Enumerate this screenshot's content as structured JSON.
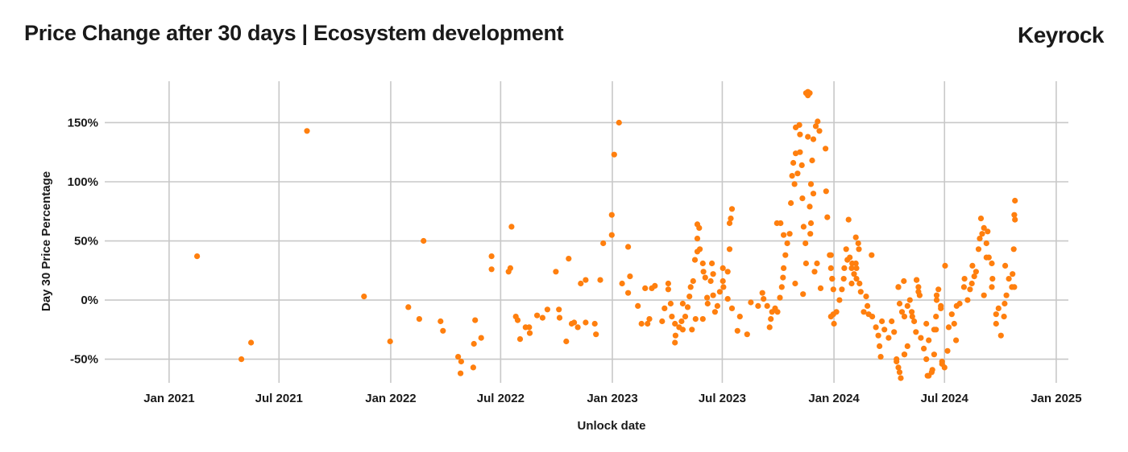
{
  "chart_data": {
    "type": "scatter",
    "title": "Price Change after 30 days | Ecosystem development",
    "brand": "Keyrock",
    "xlabel": "Unlock date",
    "ylabel": "Day 30 Price Percentage",
    "xlim": [
      "2020-09-17",
      "2025-01-21"
    ],
    "ylim": [
      -70,
      185
    ],
    "grid": true,
    "color": "#ff7f0e",
    "x_ticks": [
      {
        "date": "2021-01-01",
        "label": "Jan 2021"
      },
      {
        "date": "2021-07-01",
        "label": "Jul 2021"
      },
      {
        "date": "2022-01-01",
        "label": "Jan 2022"
      },
      {
        "date": "2022-07-01",
        "label": "Jul 2022"
      },
      {
        "date": "2023-01-01",
        "label": "Jan 2023"
      },
      {
        "date": "2023-07-01",
        "label": "Jul 2023"
      },
      {
        "date": "2024-01-01",
        "label": "Jan 2024"
      },
      {
        "date": "2024-07-01",
        "label": "Jul 2024"
      },
      {
        "date": "2025-01-01",
        "label": "Jan 2025"
      }
    ],
    "y_ticks": [
      {
        "value": 150,
        "label": "150%"
      },
      {
        "value": 100,
        "label": "100%"
      },
      {
        "value": 50,
        "label": "50%"
      },
      {
        "value": 0,
        "label": "0%"
      },
      {
        "value": -50,
        "label": "-50%"
      }
    ],
    "points": [
      [
        "2021-02-16",
        37
      ],
      [
        "2021-04-30",
        -50
      ],
      [
        "2021-05-16",
        -36
      ],
      [
        "2021-08-16",
        143
      ],
      [
        "2021-11-18",
        3
      ],
      [
        "2021-12-31",
        -35
      ],
      [
        "2022-01-30",
        -6
      ],
      [
        "2022-02-17",
        -16
      ],
      [
        "2022-02-24",
        50
      ],
      [
        "2022-03-24",
        -18
      ],
      [
        "2022-03-28",
        -26
      ],
      [
        "2022-04-22",
        -48
      ],
      [
        "2022-04-27",
        -52
      ],
      [
        "2022-04-26",
        -62
      ],
      [
        "2022-05-17",
        -57
      ],
      [
        "2022-05-18",
        -37
      ],
      [
        "2022-05-20",
        -17
      ],
      [
        "2022-05-30",
        -32
      ],
      [
        "2022-06-16",
        37
      ],
      [
        "2022-06-16",
        26
      ],
      [
        "2022-07-19",
        62
      ],
      [
        "2022-07-14",
        24
      ],
      [
        "2022-07-17",
        27
      ],
      [
        "2022-07-26",
        -14
      ],
      [
        "2022-07-29",
        -17
      ],
      [
        "2022-08-02",
        -33
      ],
      [
        "2022-08-11",
        -23
      ],
      [
        "2022-08-17",
        -23
      ],
      [
        "2022-08-18",
        -28
      ],
      [
        "2022-08-30",
        -13
      ],
      [
        "2022-09-08",
        -15
      ],
      [
        "2022-09-16",
        -8
      ],
      [
        "2022-09-30",
        24
      ],
      [
        "2022-10-05",
        -8
      ],
      [
        "2022-10-06",
        -15
      ],
      [
        "2022-10-17",
        -35
      ],
      [
        "2022-10-21",
        35
      ],
      [
        "2022-10-26",
        -20
      ],
      [
        "2022-10-30",
        -19
      ],
      [
        "2022-11-05",
        -23
      ],
      [
        "2022-11-10",
        14
      ],
      [
        "2022-11-18",
        17
      ],
      [
        "2022-11-18",
        -19
      ],
      [
        "2022-12-03",
        -20
      ],
      [
        "2022-12-05",
        -29
      ],
      [
        "2022-12-12",
        17
      ],
      [
        "2022-12-17",
        48
      ],
      [
        "2022-12-31",
        55
      ],
      [
        "2022-12-31",
        72
      ],
      [
        "2023-01-04",
        123
      ],
      [
        "2023-01-12",
        150
      ],
      [
        "2023-01-27",
        45
      ],
      [
        "2023-01-30",
        20
      ],
      [
        "2023-01-17",
        14
      ],
      [
        "2023-01-27",
        6
      ],
      [
        "2023-02-12",
        -5
      ],
      [
        "2023-02-18",
        -20
      ],
      [
        "2023-02-28",
        -20
      ],
      [
        "2023-03-03",
        -16
      ],
      [
        "2023-03-24",
        -18
      ],
      [
        "2023-02-24",
        10
      ],
      [
        "2023-03-07",
        10
      ],
      [
        "2023-03-12",
        12
      ],
      [
        "2023-04-03",
        14
      ],
      [
        "2023-04-03",
        9
      ],
      [
        "2023-03-28",
        -7
      ],
      [
        "2023-04-07",
        -3
      ],
      [
        "2023-04-09",
        -14
      ],
      [
        "2023-04-14",
        -20
      ],
      [
        "2023-04-15",
        -30
      ],
      [
        "2023-04-14",
        -36
      ],
      [
        "2023-04-21",
        -23
      ],
      [
        "2023-04-25",
        -18
      ],
      [
        "2023-04-27",
        -25
      ],
      [
        "2023-05-01",
        -14
      ],
      [
        "2023-04-27",
        -3
      ],
      [
        "2023-05-05",
        -6
      ],
      [
        "2023-05-12",
        -25
      ],
      [
        "2023-05-18",
        -16
      ],
      [
        "2023-05-30",
        -16
      ],
      [
        "2023-05-08",
        3
      ],
      [
        "2023-05-10",
        11
      ],
      [
        "2023-05-14",
        16
      ],
      [
        "2023-05-17",
        34
      ],
      [
        "2023-05-21",
        41
      ],
      [
        "2023-05-21",
        52
      ],
      [
        "2023-05-21",
        64
      ],
      [
        "2023-05-24",
        61
      ],
      [
        "2023-05-25",
        43
      ],
      [
        "2023-05-30",
        31
      ],
      [
        "2023-05-31",
        24
      ],
      [
        "2023-06-03",
        19
      ],
      [
        "2023-06-06",
        2
      ],
      [
        "2023-06-07",
        -3
      ],
      [
        "2023-06-12",
        16
      ],
      [
        "2023-06-14",
        31
      ],
      [
        "2023-06-16",
        22
      ],
      [
        "2023-06-16",
        4
      ],
      [
        "2023-06-19",
        -10
      ],
      [
        "2023-06-23",
        -5
      ],
      [
        "2023-06-27",
        7
      ],
      [
        "2023-07-02",
        16
      ],
      [
        "2023-07-02",
        27
      ],
      [
        "2023-07-03",
        11
      ],
      [
        "2023-07-10",
        24
      ],
      [
        "2023-07-10",
        1
      ],
      [
        "2023-07-13",
        43
      ],
      [
        "2023-07-13",
        65
      ],
      [
        "2023-07-15",
        69
      ],
      [
        "2023-07-17",
        77
      ],
      [
        "2023-07-17",
        -7
      ],
      [
        "2023-07-26",
        -26
      ],
      [
        "2023-07-30",
        -14
      ],
      [
        "2023-08-11",
        -29
      ],
      [
        "2023-08-17",
        -2
      ],
      [
        "2023-08-29",
        -5
      ],
      [
        "2023-09-05",
        6
      ],
      [
        "2023-09-07",
        1
      ],
      [
        "2023-09-13",
        -5
      ],
      [
        "2023-09-17",
        -23
      ],
      [
        "2023-09-19",
        -16
      ],
      [
        "2023-09-21",
        -10
      ],
      [
        "2023-09-26",
        -7
      ],
      [
        "2023-09-30",
        -10
      ],
      [
        "2023-10-04",
        2
      ],
      [
        "2023-10-07",
        11
      ],
      [
        "2023-10-09",
        19
      ],
      [
        "2023-10-10",
        27
      ],
      [
        "2023-10-13",
        38
      ],
      [
        "2023-10-16",
        48
      ],
      [
        "2023-10-10",
        55
      ],
      [
        "2023-10-20",
        56
      ],
      [
        "2023-09-29",
        65
      ],
      [
        "2023-10-05",
        65
      ],
      [
        "2023-10-22",
        82
      ],
      [
        "2023-10-28",
        98
      ],
      [
        "2023-10-24",
        105
      ],
      [
        "2023-10-26",
        116
      ],
      [
        "2023-10-30",
        124
      ],
      [
        "2023-11-06",
        125
      ],
      [
        "2023-11-09",
        114
      ],
      [
        "2023-11-02",
        107
      ],
      [
        "2023-10-30",
        146
      ],
      [
        "2023-11-05",
        148
      ],
      [
        "2023-11-06",
        140
      ],
      [
        "2023-11-10",
        86
      ],
      [
        "2023-11-12",
        62
      ],
      [
        "2023-11-15",
        48
      ],
      [
        "2023-10-29",
        14
      ],
      [
        "2023-11-11",
        5
      ],
      [
        "2023-11-16",
        31
      ],
      [
        "2023-11-22",
        79
      ],
      [
        "2023-11-19",
        138
      ],
      [
        "2023-11-23",
        56
      ],
      [
        "2023-11-24",
        65
      ],
      [
        "2023-11-26",
        118
      ],
      [
        "2023-11-28",
        136
      ],
      [
        "2023-12-02",
        147
      ],
      [
        "2023-12-08",
        143
      ],
      [
        "2023-12-05",
        151
      ],
      [
        "2023-11-24",
        98
      ],
      [
        "2023-11-28",
        90
      ],
      [
        "2023-11-30",
        24
      ],
      [
        "2023-12-04",
        31
      ],
      [
        "2023-12-10",
        10
      ],
      [
        "2023-12-18",
        128
      ],
      [
        "2023-12-19",
        92
      ],
      [
        "2023-12-21",
        70
      ],
      [
        "2023-12-27",
        38
      ],
      [
        "2023-12-29",
        18
      ],
      [
        "2023-12-31",
        9
      ],
      [
        "2023-12-31",
        -12
      ],
      [
        "2024-01-01",
        -20
      ],
      [
        "2023-11-16",
        175
      ],
      [
        "2023-11-19",
        176
      ],
      [
        "2023-11-22",
        175
      ],
      [
        "2023-11-19",
        173
      ],
      [
        "2023-12-25",
        38
      ],
      [
        "2023-12-27",
        27
      ],
      [
        "2023-12-29",
        18
      ],
      [
        "2023-12-27",
        -14
      ],
      [
        "2024-01-05",
        -10
      ],
      [
        "2024-01-10",
        0
      ],
      [
        "2024-01-14",
        9
      ],
      [
        "2024-01-17",
        18
      ],
      [
        "2024-01-18",
        27
      ],
      [
        "2024-01-21",
        43
      ],
      [
        "2024-01-25",
        68
      ],
      [
        "2024-01-23",
        34
      ],
      [
        "2024-01-27",
        36
      ],
      [
        "2024-01-30",
        27
      ],
      [
        "2024-01-31",
        31
      ],
      [
        "2024-02-03",
        22
      ],
      [
        "2024-02-06",
        31
      ],
      [
        "2024-02-07",
        27
      ],
      [
        "2024-02-06",
        53
      ],
      [
        "2024-02-10",
        48
      ],
      [
        "2024-02-11",
        43
      ],
      [
        "2024-02-07",
        18
      ],
      [
        "2024-01-30",
        14
      ],
      [
        "2024-02-12",
        14
      ],
      [
        "2024-02-14",
        7
      ],
      [
        "2024-02-23",
        3
      ],
      [
        "2024-02-25",
        -5
      ],
      [
        "2024-02-19",
        -10
      ],
      [
        "2024-03-03",
        38
      ],
      [
        "2024-02-27",
        -12
      ],
      [
        "2024-03-04",
        -14
      ],
      [
        "2024-03-10",
        -23
      ],
      [
        "2024-03-14",
        -30
      ],
      [
        "2024-03-16",
        -39
      ],
      [
        "2024-03-18",
        -48
      ],
      [
        "2024-03-20",
        -18
      ],
      [
        "2024-03-24",
        -25
      ],
      [
        "2024-03-31",
        -32
      ],
      [
        "2024-04-05",
        -18
      ],
      [
        "2024-04-09",
        -27
      ],
      [
        "2024-04-13",
        -50
      ],
      [
        "2024-04-16",
        -57
      ],
      [
        "2024-04-18",
        -61
      ],
      [
        "2024-04-16",
        11
      ],
      [
        "2024-04-25",
        16
      ],
      [
        "2024-04-18",
        -3
      ],
      [
        "2024-04-22",
        -10
      ],
      [
        "2024-04-26",
        -14
      ],
      [
        "2024-05-01",
        -5
      ],
      [
        "2024-05-05",
        0
      ],
      [
        "2024-05-08",
        -10
      ],
      [
        "2024-05-09",
        -14
      ],
      [
        "2024-05-12",
        -18
      ],
      [
        "2024-05-16",
        17
      ],
      [
        "2024-05-19",
        7
      ],
      [
        "2024-05-15",
        -27
      ],
      [
        "2024-04-26",
        -46
      ],
      [
        "2024-05-01",
        -39
      ],
      [
        "2024-05-23",
        -32
      ],
      [
        "2024-05-28",
        -41
      ],
      [
        "2024-06-01",
        -50
      ],
      [
        "2024-06-03",
        -64
      ],
      [
        "2024-06-10",
        -61
      ],
      [
        "2024-06-14",
        -25
      ],
      [
        "2024-06-17",
        -14
      ],
      [
        "2024-06-18",
        4
      ],
      [
        "2024-06-21",
        9
      ],
      [
        "2024-06-25",
        -5
      ],
      [
        "2024-06-27",
        -54
      ],
      [
        "2024-07-02",
        29
      ],
      [
        "2024-04-13",
        -52
      ],
      [
        "2024-04-20",
        -66
      ],
      [
        "2024-04-26",
        -46
      ],
      [
        "2024-04-16",
        11
      ],
      [
        "2024-05-16",
        17
      ],
      [
        "2024-05-19",
        11
      ],
      [
        "2024-05-21",
        4
      ],
      [
        "2024-06-01",
        -20
      ],
      [
        "2024-06-05",
        -34
      ],
      [
        "2024-06-05",
        -64
      ],
      [
        "2024-06-11",
        -59
      ],
      [
        "2024-06-14",
        -46
      ],
      [
        "2024-06-17",
        -25
      ],
      [
        "2024-06-18",
        0
      ],
      [
        "2024-06-25",
        -7
      ],
      [
        "2024-06-27",
        -52
      ],
      [
        "2024-07-01",
        -57
      ],
      [
        "2024-07-06",
        -43
      ],
      [
        "2024-07-08",
        -23
      ],
      [
        "2024-07-13",
        -12
      ],
      [
        "2024-07-17",
        -20
      ],
      [
        "2024-07-20",
        -34
      ],
      [
        "2024-07-21",
        -5
      ],
      [
        "2024-07-26",
        -3
      ],
      [
        "2024-08-02",
        11
      ],
      [
        "2024-08-03",
        18
      ],
      [
        "2024-08-08",
        0
      ],
      [
        "2024-08-12",
        9
      ],
      [
        "2024-08-15",
        14
      ],
      [
        "2024-08-19",
        20
      ],
      [
        "2024-08-16",
        29
      ],
      [
        "2024-08-22",
        24
      ],
      [
        "2024-08-26",
        43
      ],
      [
        "2024-08-28",
        52
      ],
      [
        "2024-08-30",
        69
      ],
      [
        "2024-09-01",
        56
      ],
      [
        "2024-09-04",
        61
      ],
      [
        "2024-09-08",
        48
      ],
      [
        "2024-09-10",
        58
      ],
      [
        "2024-09-12",
        36
      ],
      [
        "2024-09-17",
        31
      ],
      [
        "2024-09-08",
        36
      ],
      [
        "2024-09-04",
        4
      ],
      [
        "2024-09-17",
        11
      ],
      [
        "2024-09-18",
        18
      ],
      [
        "2024-09-24",
        -12
      ],
      [
        "2024-09-24",
        -20
      ],
      [
        "2024-09-28",
        -7
      ],
      [
        "2024-10-02",
        -30
      ],
      [
        "2024-10-07",
        -14
      ],
      [
        "2024-10-08",
        -3
      ],
      [
        "2024-10-11",
        4
      ],
      [
        "2024-10-09",
        29
      ],
      [
        "2024-10-15",
        18
      ],
      [
        "2024-10-20",
        11
      ],
      [
        "2024-10-21",
        22
      ],
      [
        "2024-10-23",
        43
      ],
      [
        "2024-10-25",
        68
      ],
      [
        "2024-10-24",
        72
      ],
      [
        "2024-10-25",
        84
      ],
      [
        "2024-10-24",
        11
      ]
    ]
  }
}
